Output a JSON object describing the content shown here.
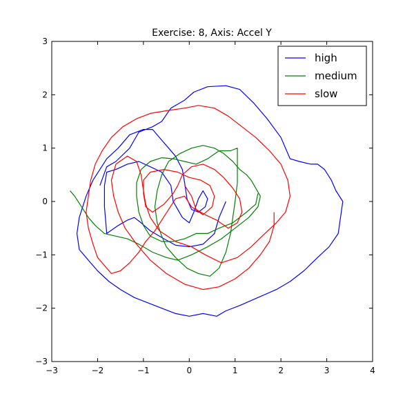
{
  "chart_data": {
    "type": "line",
    "title": "Exercise: 8, Axis: Accel Y",
    "xlabel": "",
    "ylabel": "",
    "xlim": [
      -3,
      4
    ],
    "ylim": [
      -3,
      3
    ],
    "xticks": [
      -3,
      -2,
      -1,
      0,
      1,
      2,
      3,
      4
    ],
    "yticks": [
      -3,
      -2,
      -1,
      0,
      1,
      2,
      3
    ],
    "xtick_labels": [
      "−3",
      "−2",
      "−1",
      "0",
      "1",
      "2",
      "3",
      "4"
    ],
    "ytick_labels": [
      "−3",
      "−2",
      "−1",
      "0",
      "1",
      "2",
      "3"
    ],
    "grid": false,
    "legend_position": "top-right",
    "series": [
      {
        "name": "high",
        "color": "#0000ff",
        "points": [
          [
            0.8,
            0.0
          ],
          [
            0.65,
            -0.3
          ],
          [
            0.55,
            -0.6
          ],
          [
            0.3,
            -0.8
          ],
          [
            0.0,
            -0.85
          ],
          [
            -0.3,
            -0.82
          ],
          [
            -0.55,
            -0.7
          ],
          [
            -0.85,
            -0.55
          ],
          [
            -1.05,
            -0.4
          ],
          [
            -1.2,
            -0.3
          ],
          [
            -1.35,
            -0.35
          ],
          [
            -1.55,
            -0.45
          ],
          [
            -1.8,
            -0.6
          ],
          [
            -1.85,
            -0.1
          ],
          [
            -1.85,
            0.3
          ],
          [
            -1.8,
            0.55
          ],
          [
            -1.6,
            0.6
          ],
          [
            -1.35,
            0.7
          ],
          [
            -1.1,
            0.75
          ],
          [
            -0.85,
            0.65
          ],
          [
            -0.6,
            0.55
          ],
          [
            -0.4,
            0.3
          ],
          [
            -0.35,
            0.0
          ],
          [
            -0.15,
            -0.3
          ],
          [
            0.0,
            -0.4
          ],
          [
            0.1,
            -0.2
          ],
          [
            0.2,
            0.05
          ],
          [
            0.3,
            0.2
          ],
          [
            0.4,
            0.05
          ],
          [
            0.35,
            -0.1
          ],
          [
            0.2,
            -0.2
          ],
          [
            0.05,
            -0.15
          ],
          [
            -0.05,
            0.05
          ],
          [
            -0.1,
            0.35
          ],
          [
            -0.15,
            0.6
          ],
          [
            -0.3,
            0.85
          ],
          [
            -0.45,
            1.0
          ],
          [
            -0.6,
            1.15
          ],
          [
            -0.8,
            1.35
          ],
          [
            -1.0,
            1.35
          ],
          [
            -1.3,
            1.25
          ],
          [
            -1.55,
            1.0
          ],
          [
            -1.8,
            0.8
          ],
          [
            -1.95,
            0.6
          ],
          [
            -2.1,
            0.4
          ],
          [
            -2.25,
            0.1
          ],
          [
            -2.4,
            -0.3
          ],
          [
            -2.45,
            -0.6
          ],
          [
            -2.4,
            -0.9
          ],
          [
            -2.2,
            -1.1
          ],
          [
            -2.0,
            -1.3
          ],
          [
            -1.75,
            -1.5
          ],
          [
            -1.5,
            -1.65
          ],
          [
            -1.2,
            -1.8
          ],
          [
            -0.9,
            -1.9
          ],
          [
            -0.6,
            -2.0
          ],
          [
            -0.3,
            -2.1
          ],
          [
            0.0,
            -2.15
          ],
          [
            0.3,
            -2.1
          ],
          [
            0.6,
            -2.15
          ],
          [
            0.8,
            -2.05
          ],
          [
            1.1,
            -1.95
          ],
          [
            1.5,
            -1.8
          ],
          [
            1.9,
            -1.65
          ],
          [
            2.2,
            -1.5
          ],
          [
            2.5,
            -1.3
          ],
          [
            2.8,
            -1.05
          ],
          [
            3.05,
            -0.85
          ],
          [
            3.25,
            -0.6
          ],
          [
            3.3,
            -0.3
          ],
          [
            3.35,
            0.0
          ],
          [
            3.2,
            0.2
          ],
          [
            3.1,
            0.4
          ],
          [
            2.95,
            0.6
          ],
          [
            2.8,
            0.7
          ],
          [
            2.65,
            0.7
          ],
          [
            2.4,
            0.75
          ],
          [
            2.2,
            0.8
          ],
          [
            2.0,
            1.2
          ],
          [
            1.7,
            1.55
          ],
          [
            1.4,
            1.85
          ],
          [
            1.1,
            2.1
          ],
          [
            0.8,
            2.17
          ],
          [
            0.4,
            2.15
          ],
          [
            0.1,
            2.05
          ],
          [
            -0.1,
            1.9
          ],
          [
            -0.4,
            1.75
          ],
          [
            -0.6,
            1.5
          ],
          [
            -0.8,
            1.4
          ],
          [
            -1.1,
            1.3
          ],
          [
            -1.3,
            1.0
          ],
          [
            -1.6,
            0.75
          ],
          [
            -1.8,
            0.65
          ],
          [
            -1.95,
            0.3
          ]
        ]
      },
      {
        "name": "medium",
        "color": "#008000",
        "points": [
          [
            -2.6,
            0.2
          ],
          [
            -2.5,
            0.1
          ],
          [
            -2.35,
            -0.1
          ],
          [
            -2.2,
            -0.3
          ],
          [
            -2.05,
            -0.45
          ],
          [
            -1.85,
            -0.6
          ],
          [
            -1.6,
            -0.65
          ],
          [
            -1.35,
            -0.7
          ],
          [
            -1.1,
            -0.8
          ],
          [
            -0.8,
            -0.95
          ],
          [
            -0.5,
            -1.05
          ],
          [
            -0.25,
            -1.1
          ],
          [
            0.05,
            -1.0
          ],
          [
            0.4,
            -0.85
          ],
          [
            0.7,
            -0.7
          ],
          [
            1.0,
            -0.5
          ],
          [
            1.3,
            -0.3
          ],
          [
            1.5,
            -0.1
          ],
          [
            1.55,
            0.1
          ],
          [
            1.45,
            0.25
          ],
          [
            1.35,
            0.4
          ],
          [
            1.25,
            0.5
          ],
          [
            1.1,
            0.6
          ],
          [
            0.95,
            0.75
          ],
          [
            0.75,
            0.9
          ],
          [
            0.55,
            1.0
          ],
          [
            0.3,
            1.05
          ],
          [
            0.05,
            1.0
          ],
          [
            -0.2,
            0.9
          ],
          [
            -0.45,
            0.75
          ],
          [
            -0.6,
            0.5
          ],
          [
            -0.7,
            0.2
          ],
          [
            -0.75,
            -0.1
          ],
          [
            -0.7,
            -0.4
          ],
          [
            -0.6,
            -0.65
          ],
          [
            -0.5,
            -0.85
          ],
          [
            -0.3,
            -1.05
          ],
          [
            -0.05,
            -1.25
          ],
          [
            0.2,
            -1.35
          ],
          [
            0.45,
            -1.4
          ],
          [
            0.65,
            -1.25
          ],
          [
            0.8,
            -0.95
          ],
          [
            0.9,
            -0.6
          ],
          [
            0.95,
            -0.3
          ],
          [
            1.0,
            0.0
          ],
          [
            1.05,
            0.35
          ],
          [
            1.05,
            0.7
          ],
          [
            1.05,
            1.0
          ],
          [
            0.9,
            0.95
          ],
          [
            0.65,
            0.95
          ],
          [
            0.4,
            0.8
          ],
          [
            0.15,
            0.7
          ],
          [
            -0.1,
            0.75
          ],
          [
            -0.35,
            0.8
          ],
          [
            -0.6,
            0.82
          ],
          [
            -0.85,
            0.75
          ],
          [
            -1.05,
            0.6
          ],
          [
            -1.15,
            0.35
          ],
          [
            -1.15,
            0.1
          ],
          [
            -1.1,
            -0.2
          ],
          [
            -1.0,
            -0.45
          ],
          [
            -0.85,
            -0.65
          ],
          [
            -0.6,
            -0.75
          ],
          [
            -0.35,
            -0.75
          ],
          [
            -0.1,
            -0.7
          ],
          [
            0.15,
            -0.6
          ],
          [
            0.4,
            -0.6
          ],
          [
            0.65,
            -0.5
          ],
          [
            0.95,
            -0.4
          ],
          [
            1.25,
            -0.2
          ],
          [
            1.45,
            -0.05
          ],
          [
            1.5,
            0.15
          ]
        ]
      },
      {
        "name": "slow",
        "color": "#ff0000",
        "points": [
          [
            -0.1,
            0.3
          ],
          [
            0.05,
            0.1
          ],
          [
            0.15,
            -0.15
          ],
          [
            0.35,
            -0.25
          ],
          [
            0.6,
            -0.35
          ],
          [
            0.85,
            -0.5
          ],
          [
            1.05,
            -0.4
          ],
          [
            1.15,
            -0.2
          ],
          [
            1.1,
            0.05
          ],
          [
            0.95,
            0.25
          ],
          [
            0.75,
            0.45
          ],
          [
            0.55,
            0.6
          ],
          [
            0.3,
            0.7
          ],
          [
            0.05,
            0.65
          ],
          [
            -0.15,
            0.5
          ],
          [
            -0.25,
            0.3
          ],
          [
            -0.35,
            0.15
          ],
          [
            -0.55,
            -0.05
          ],
          [
            -0.8,
            -0.2
          ],
          [
            -0.95,
            -0.1
          ],
          [
            -1.0,
            0.15
          ],
          [
            -1.0,
            0.4
          ],
          [
            -0.85,
            0.55
          ],
          [
            -0.55,
            0.6
          ],
          [
            -0.25,
            0.55
          ],
          [
            0.0,
            0.45
          ],
          [
            0.25,
            0.4
          ],
          [
            0.45,
            0.3
          ],
          [
            0.55,
            0.1
          ],
          [
            0.5,
            -0.1
          ],
          [
            0.3,
            -0.25
          ],
          [
            0.05,
            -0.1
          ],
          [
            -0.1,
            0.1
          ],
          [
            -0.3,
            0.05
          ],
          [
            -0.45,
            -0.15
          ],
          [
            -0.6,
            -0.35
          ],
          [
            -0.75,
            -0.55
          ],
          [
            -0.95,
            -0.75
          ],
          [
            -1.1,
            -0.95
          ],
          [
            -1.3,
            -1.15
          ],
          [
            -1.5,
            -1.3
          ],
          [
            -1.7,
            -1.35
          ],
          [
            -1.85,
            -1.2
          ],
          [
            -2.0,
            -1.05
          ],
          [
            -2.1,
            -0.8
          ],
          [
            -2.2,
            -0.5
          ],
          [
            -2.25,
            -0.2
          ],
          [
            -2.2,
            0.1
          ],
          [
            -2.15,
            0.4
          ],
          [
            -2.05,
            0.7
          ],
          [
            -1.9,
            0.95
          ],
          [
            -1.7,
            1.2
          ],
          [
            -1.45,
            1.4
          ],
          [
            -1.15,
            1.55
          ],
          [
            -0.85,
            1.65
          ],
          [
            -0.5,
            1.7
          ],
          [
            -0.1,
            1.75
          ],
          [
            0.2,
            1.8
          ],
          [
            0.55,
            1.75
          ],
          [
            0.85,
            1.6
          ],
          [
            1.15,
            1.4
          ],
          [
            1.45,
            1.2
          ],
          [
            1.75,
            0.95
          ],
          [
            2.0,
            0.7
          ],
          [
            2.15,
            0.4
          ],
          [
            2.2,
            0.1
          ],
          [
            2.1,
            -0.2
          ],
          [
            1.9,
            -0.4
          ],
          [
            1.65,
            -0.6
          ],
          [
            1.35,
            -0.85
          ],
          [
            1.05,
            -1.05
          ],
          [
            0.7,
            -1.15
          ],
          [
            0.35,
            -1.0
          ],
          [
            0.05,
            -0.85
          ],
          [
            -0.3,
            -0.75
          ],
          [
            -0.65,
            -0.55
          ],
          [
            -0.85,
            -0.3
          ],
          [
            -0.95,
            -0.05
          ],
          [
            -1.0,
            0.2
          ],
          [
            -1.05,
            0.5
          ],
          [
            -1.15,
            0.75
          ],
          [
            -1.35,
            0.85
          ],
          [
            -1.6,
            0.7
          ],
          [
            -1.7,
            0.4
          ],
          [
            -1.65,
            0.1
          ],
          [
            -1.55,
            -0.2
          ],
          [
            -1.4,
            -0.5
          ],
          [
            -1.15,
            -0.8
          ],
          [
            -0.85,
            -1.1
          ],
          [
            -0.5,
            -1.35
          ],
          [
            -0.1,
            -1.55
          ],
          [
            0.3,
            -1.65
          ],
          [
            0.65,
            -1.6
          ],
          [
            1.0,
            -1.45
          ],
          [
            1.3,
            -1.25
          ],
          [
            1.55,
            -1.0
          ],
          [
            1.75,
            -0.75
          ],
          [
            1.85,
            -0.45
          ],
          [
            1.85,
            -0.2
          ]
        ]
      }
    ]
  }
}
